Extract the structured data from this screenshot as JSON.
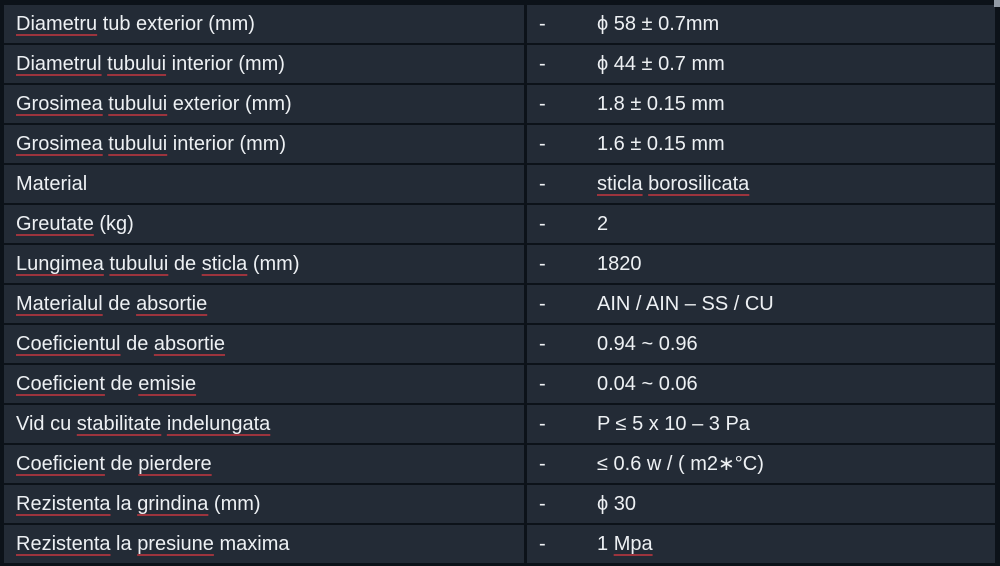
{
  "colors": {
    "cell_background": "#232b36",
    "grid_lines": "#0c1219",
    "text": "#edf0f3",
    "spellcheck_underline": "#9c343d"
  },
  "table": {
    "rows": [
      {
        "dash": "-",
        "label": [
          {
            "t": "Diametru",
            "u": true
          },
          {
            "t": " tub exterior (mm)",
            "u": false
          }
        ],
        "value": [
          {
            "t": "ϕ 58 ± 0.7mm",
            "u": false
          }
        ]
      },
      {
        "dash": "-",
        "label": [
          {
            "t": "Diametrul",
            "u": true
          },
          {
            "t": " ",
            "u": false
          },
          {
            "t": "tubului",
            "u": true
          },
          {
            "t": " interior (mm)",
            "u": false
          }
        ],
        "value": [
          {
            "t": "ϕ 44 ± 0.7 mm",
            "u": false
          }
        ]
      },
      {
        "dash": "-",
        "label": [
          {
            "t": "Grosimea",
            "u": true
          },
          {
            "t": " ",
            "u": false
          },
          {
            "t": "tubului",
            "u": true
          },
          {
            "t": " exterior (mm)",
            "u": false
          }
        ],
        "value": [
          {
            "t": "1.8 ± 0.15 mm",
            "u": false
          }
        ]
      },
      {
        "dash": "-",
        "label": [
          {
            "t": "Grosimea",
            "u": true
          },
          {
            "t": " ",
            "u": false
          },
          {
            "t": "tubului",
            "u": true
          },
          {
            "t": " interior (mm)",
            "u": false
          }
        ],
        "value": [
          {
            "t": "1.6 ± 0.15 mm",
            "u": false
          }
        ]
      },
      {
        "dash": "-",
        "label": [
          {
            "t": "Material",
            "u": false
          }
        ],
        "value": [
          {
            "t": "sticla",
            "u": true
          },
          {
            "t": " ",
            "u": false
          },
          {
            "t": "borosilicata",
            "u": true
          }
        ]
      },
      {
        "dash": "-",
        "label": [
          {
            "t": "Greutate",
            "u": true
          },
          {
            "t": " (kg)",
            "u": false
          }
        ],
        "value": [
          {
            "t": "2",
            "u": false
          }
        ]
      },
      {
        "dash": "-",
        "label": [
          {
            "t": "Lungimea",
            "u": true
          },
          {
            "t": " ",
            "u": false
          },
          {
            "t": "tubului",
            "u": true
          },
          {
            "t": " de ",
            "u": false
          },
          {
            "t": "sticla",
            "u": true
          },
          {
            "t": " (mm)",
            "u": false
          }
        ],
        "value": [
          {
            "t": "1820",
            "u": false
          }
        ]
      },
      {
        "dash": "-",
        "label": [
          {
            "t": "Materialul",
            "u": true
          },
          {
            "t": " de ",
            "u": false
          },
          {
            "t": "absortie",
            "u": true
          }
        ],
        "value": [
          {
            "t": "AIN / AIN – SS / CU",
            "u": false
          }
        ]
      },
      {
        "dash": "-",
        "label": [
          {
            "t": "Coeficientul",
            "u": true
          },
          {
            "t": " de ",
            "u": false
          },
          {
            "t": "absortie",
            "u": true
          }
        ],
        "value": [
          {
            "t": "0.94 ~ 0.96",
            "u": false
          }
        ]
      },
      {
        "dash": "-",
        "label": [
          {
            "t": "Coeficient",
            "u": true
          },
          {
            "t": " de ",
            "u": false
          },
          {
            "t": "emisie",
            "u": true
          }
        ],
        "value": [
          {
            "t": "0.04 ~ 0.06",
            "u": false
          }
        ]
      },
      {
        "dash": "-",
        "label": [
          {
            "t": "Vid cu ",
            "u": false
          },
          {
            "t": "stabilitate",
            "u": true
          },
          {
            "t": " ",
            "u": false
          },
          {
            "t": "indelungata",
            "u": true
          }
        ],
        "value": [
          {
            "t": "P ≤ 5 x 10 – 3 Pa",
            "u": false
          }
        ]
      },
      {
        "dash": "-",
        "label": [
          {
            "t": "Coeficient",
            "u": true
          },
          {
            "t": " de ",
            "u": false
          },
          {
            "t": "pierdere",
            "u": true
          }
        ],
        "value": [
          {
            "t": "≤ 0.6 w / ( m2∗°C)",
            "u": false
          }
        ]
      },
      {
        "dash": "-",
        "label": [
          {
            "t": "Rezistenta",
            "u": true
          },
          {
            "t": " la ",
            "u": false
          },
          {
            "t": "grindina",
            "u": true
          },
          {
            "t": " (mm)",
            "u": false
          }
        ],
        "value": [
          {
            "t": "ϕ 30",
            "u": false
          }
        ]
      },
      {
        "dash": "-",
        "label": [
          {
            "t": "Rezistenta",
            "u": true
          },
          {
            "t": " la ",
            "u": false
          },
          {
            "t": "presiune",
            "u": true
          },
          {
            "t": " maxima",
            "u": false
          }
        ],
        "value": [
          {
            "t": "1 ",
            "u": false
          },
          {
            "t": "Mpa",
            "u": true
          }
        ]
      }
    ]
  }
}
